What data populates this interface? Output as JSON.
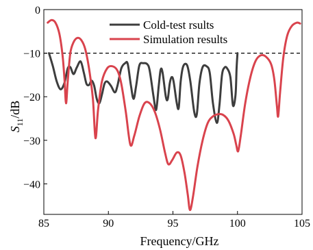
{
  "chart_data": {
    "type": "line",
    "title": "",
    "xlabel": "Frequency/GHz",
    "ylabel_main": "S",
    "ylabel_sub": "11",
    "ylabel_unit": "/dB",
    "xlim": [
      85,
      105
    ],
    "ylim": [
      -47,
      0
    ],
    "xticks": [
      85,
      90,
      95,
      100,
      105
    ],
    "yticks": [
      0,
      -10,
      -20,
      -30,
      -40
    ],
    "grid": false,
    "legend_position": "top-center",
    "reference_line": {
      "y": -10,
      "style": "dashed",
      "color": "#000000"
    },
    "series": [
      {
        "name": "Cold-test rsults",
        "color": "#3d3d3d",
        "points": [
          [
            85.4,
            -10.0
          ],
          [
            85.7,
            -13.0
          ],
          [
            86.0,
            -16.5
          ],
          [
            86.3,
            -18.3
          ],
          [
            86.6,
            -16.8
          ],
          [
            86.85,
            -13.5
          ],
          [
            87.05,
            -13.2
          ],
          [
            87.3,
            -14.8
          ],
          [
            87.55,
            -13.3
          ],
          [
            87.85,
            -11.9
          ],
          [
            88.1,
            -14.5
          ],
          [
            88.3,
            -17.0
          ],
          [
            88.5,
            -17.3
          ],
          [
            88.7,
            -16.3
          ],
          [
            88.9,
            -17.5
          ],
          [
            89.1,
            -20.5
          ],
          [
            89.3,
            -21.5
          ],
          [
            89.5,
            -19.5
          ],
          [
            89.7,
            -17.0
          ],
          [
            89.9,
            -16.5
          ],
          [
            90.2,
            -17.5
          ],
          [
            90.5,
            -19.0
          ],
          [
            90.7,
            -17.5
          ],
          [
            91.0,
            -13.5
          ],
          [
            91.3,
            -12.3
          ],
          [
            91.5,
            -12.5
          ],
          [
            91.75,
            -17.5
          ],
          [
            91.95,
            -20.5
          ],
          [
            92.15,
            -17.5
          ],
          [
            92.4,
            -12.8
          ],
          [
            92.7,
            -12.3
          ],
          [
            93.0,
            -12.5
          ],
          [
            93.2,
            -14.0
          ],
          [
            93.5,
            -20.0
          ],
          [
            93.7,
            -23.0
          ],
          [
            93.9,
            -17.5
          ],
          [
            94.05,
            -13.8
          ],
          [
            94.2,
            -14.5
          ],
          [
            94.45,
            -20.0
          ],
          [
            94.6,
            -20.5
          ],
          [
            94.75,
            -17.0
          ],
          [
            94.9,
            -15.5
          ],
          [
            95.05,
            -16.5
          ],
          [
            95.3,
            -21.5
          ],
          [
            95.45,
            -22.5
          ],
          [
            95.6,
            -16.5
          ],
          [
            95.8,
            -13.0
          ],
          [
            96.1,
            -12.8
          ],
          [
            96.35,
            -16.5
          ],
          [
            96.65,
            -23.5
          ],
          [
            96.85,
            -24.0
          ],
          [
            97.05,
            -17.0
          ],
          [
            97.3,
            -13.2
          ],
          [
            97.6,
            -13.0
          ],
          [
            97.85,
            -14.5
          ],
          [
            98.1,
            -21.5
          ],
          [
            98.4,
            -26.0
          ],
          [
            98.6,
            -22.0
          ],
          [
            98.8,
            -15.0
          ],
          [
            99.0,
            -13.3
          ],
          [
            99.2,
            -13.5
          ],
          [
            99.45,
            -15.5
          ],
          [
            99.65,
            -22.0
          ],
          [
            99.85,
            -19.5
          ],
          [
            99.93,
            -13.5
          ],
          [
            100.0,
            -10.0
          ]
        ]
      },
      {
        "name": "Simulation results",
        "color": "#d9434d",
        "points": [
          [
            85.3,
            -3.0
          ],
          [
            85.6,
            -2.4
          ],
          [
            85.9,
            -3.0
          ],
          [
            86.2,
            -5.5
          ],
          [
            86.45,
            -10.5
          ],
          [
            86.6,
            -16.0
          ],
          [
            86.72,
            -21.5
          ],
          [
            86.85,
            -16.5
          ],
          [
            87.05,
            -10.0
          ],
          [
            87.3,
            -7.5
          ],
          [
            87.6,
            -6.5
          ],
          [
            87.9,
            -7.0
          ],
          [
            88.2,
            -9.0
          ],
          [
            88.5,
            -13.5
          ],
          [
            88.8,
            -20.5
          ],
          [
            89.0,
            -29.5
          ],
          [
            89.2,
            -23.0
          ],
          [
            89.5,
            -16.5
          ],
          [
            89.9,
            -13.5
          ],
          [
            90.3,
            -13.0
          ],
          [
            90.7,
            -14.0
          ],
          [
            91.0,
            -17.0
          ],
          [
            91.35,
            -23.5
          ],
          [
            91.7,
            -31.0
          ],
          [
            92.0,
            -29.0
          ],
          [
            92.4,
            -24.5
          ],
          [
            92.8,
            -21.5
          ],
          [
            93.2,
            -21.5
          ],
          [
            93.6,
            -23.5
          ],
          [
            94.0,
            -27.5
          ],
          [
            94.4,
            -33.0
          ],
          [
            94.65,
            -35.5
          ],
          [
            94.95,
            -34.5
          ],
          [
            95.3,
            -32.8
          ],
          [
            95.6,
            -33.5
          ],
          [
            95.9,
            -37.5
          ],
          [
            96.15,
            -42.5
          ],
          [
            96.32,
            -46.0
          ],
          [
            96.55,
            -43.0
          ],
          [
            96.9,
            -36.0
          ],
          [
            97.3,
            -30.0
          ],
          [
            97.7,
            -26.0
          ],
          [
            98.1,
            -24.5
          ],
          [
            98.5,
            -24.0
          ],
          [
            98.9,
            -24.2
          ],
          [
            99.3,
            -25.5
          ],
          [
            99.7,
            -28.5
          ],
          [
            99.9,
            -31.0
          ],
          [
            100.05,
            -32.5
          ],
          [
            100.25,
            -29.0
          ],
          [
            100.6,
            -21.5
          ],
          [
            101.0,
            -15.5
          ],
          [
            101.4,
            -11.8
          ],
          [
            101.8,
            -10.5
          ],
          [
            102.2,
            -10.8
          ],
          [
            102.6,
            -12.5
          ],
          [
            102.85,
            -16.0
          ],
          [
            103.05,
            -22.0
          ],
          [
            103.15,
            -24.5
          ],
          [
            103.3,
            -19.0
          ],
          [
            103.55,
            -11.0
          ],
          [
            103.85,
            -6.0
          ],
          [
            104.2,
            -3.8
          ],
          [
            104.6,
            -3.0
          ],
          [
            104.85,
            -3.2
          ]
        ]
      }
    ]
  }
}
